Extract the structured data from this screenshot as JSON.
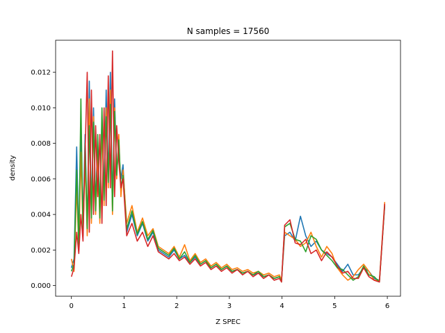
{
  "chart_data": {
    "type": "line",
    "title": "N samples = 17560",
    "xlabel": "Z SPEC",
    "ylabel": "density",
    "xlim": [
      -0.3,
      6.25
    ],
    "ylim": [
      -0.0006,
      0.0138
    ],
    "xticks": [
      0,
      1,
      2,
      3,
      4,
      5,
      6
    ],
    "yticks": [
      0.0,
      0.002,
      0.004,
      0.006,
      0.008,
      0.01,
      0.012
    ],
    "ytick_labels": [
      "0.000",
      "0.002",
      "0.004",
      "0.006",
      "0.008",
      "0.010",
      "0.012"
    ],
    "grid": false,
    "legend": "none",
    "series": [
      {
        "color": "#1f77b4",
        "x": [
          0.0,
          0.05,
          0.1,
          0.14,
          0.18,
          0.22,
          0.26,
          0.3,
          0.34,
          0.38,
          0.42,
          0.46,
          0.5,
          0.54,
          0.58,
          0.62,
          0.66,
          0.7,
          0.74,
          0.78,
          0.82,
          0.86,
          0.9,
          0.94,
          0.98,
          1.05,
          1.15,
          1.25,
          1.35,
          1.45,
          1.55,
          1.65,
          1.75,
          1.85,
          1.95,
          2.05,
          2.15,
          2.25,
          2.35,
          2.45,
          2.55,
          2.65,
          2.75,
          2.85,
          2.95,
          3.05,
          3.15,
          3.25,
          3.35,
          3.45,
          3.55,
          3.65,
          3.75,
          3.85,
          3.95,
          3.99,
          4.05,
          4.15,
          4.25,
          4.35,
          4.45,
          4.55,
          4.65,
          4.75,
          4.85,
          4.95,
          5.05,
          5.15,
          5.25,
          5.35,
          5.45,
          5.55,
          5.65,
          5.75,
          5.85,
          5.95
        ],
        "y": [
          0.001,
          0.0015,
          0.0078,
          0.0025,
          0.009,
          0.0035,
          0.0085,
          0.003,
          0.0115,
          0.004,
          0.01,
          0.0045,
          0.008,
          0.004,
          0.0095,
          0.005,
          0.011,
          0.006,
          0.012,
          0.0045,
          0.0105,
          0.0065,
          0.0075,
          0.006,
          0.0068,
          0.003,
          0.004,
          0.0028,
          0.0035,
          0.0025,
          0.003,
          0.002,
          0.0018,
          0.0016,
          0.002,
          0.0015,
          0.0017,
          0.0013,
          0.0016,
          0.0012,
          0.0014,
          0.001,
          0.0012,
          0.0009,
          0.0011,
          0.0008,
          0.0009,
          0.0007,
          0.0008,
          0.0006,
          0.0007,
          0.0005,
          0.0006,
          0.0004,
          0.0005,
          0.0003,
          0.0028,
          0.003,
          0.0025,
          0.0039,
          0.0028,
          0.0022,
          0.0025,
          0.002,
          0.0018,
          0.0016,
          0.0012,
          0.0008,
          0.0012,
          0.0006,
          0.0006,
          0.001,
          0.0008,
          0.0004,
          0.0003,
          0.0045
        ]
      },
      {
        "color": "#ff7f0e",
        "x": [
          0.0,
          0.05,
          0.1,
          0.14,
          0.18,
          0.22,
          0.26,
          0.3,
          0.34,
          0.38,
          0.42,
          0.46,
          0.5,
          0.54,
          0.58,
          0.62,
          0.66,
          0.7,
          0.74,
          0.78,
          0.82,
          0.86,
          0.9,
          0.94,
          0.98,
          1.05,
          1.15,
          1.25,
          1.35,
          1.45,
          1.55,
          1.65,
          1.75,
          1.85,
          1.95,
          2.05,
          2.15,
          2.25,
          2.35,
          2.45,
          2.55,
          2.65,
          2.75,
          2.85,
          2.95,
          3.05,
          3.15,
          3.25,
          3.35,
          3.45,
          3.55,
          3.65,
          3.75,
          3.85,
          3.95,
          3.99,
          4.05,
          4.15,
          4.25,
          4.35,
          4.45,
          4.55,
          4.65,
          4.75,
          4.85,
          4.95,
          5.05,
          5.15,
          5.25,
          5.35,
          5.45,
          5.55,
          5.65,
          5.75,
          5.85,
          5.95
        ],
        "y": [
          0.0015,
          0.0008,
          0.0056,
          0.002,
          0.0075,
          0.003,
          0.007,
          0.0028,
          0.0105,
          0.0035,
          0.0095,
          0.004,
          0.0075,
          0.0035,
          0.009,
          0.0045,
          0.01,
          0.0055,
          0.011,
          0.004,
          0.01,
          0.006,
          0.0085,
          0.005,
          0.0065,
          0.0035,
          0.0045,
          0.003,
          0.0038,
          0.0028,
          0.0032,
          0.0022,
          0.002,
          0.0018,
          0.0022,
          0.0016,
          0.0023,
          0.0014,
          0.0018,
          0.0013,
          0.0015,
          0.0011,
          0.0013,
          0.001,
          0.0012,
          0.0009,
          0.001,
          0.0008,
          0.0009,
          0.0007,
          0.0008,
          0.0006,
          0.0007,
          0.0005,
          0.0006,
          0.0003,
          0.003,
          0.0028,
          0.0026,
          0.0022,
          0.0024,
          0.003,
          0.0022,
          0.0016,
          0.0022,
          0.0018,
          0.001,
          0.0006,
          0.0003,
          0.0005,
          0.0009,
          0.0012,
          0.0008,
          0.0003,
          0.0003,
          0.0047
        ]
      },
      {
        "color": "#2ca02c",
        "x": [
          0.0,
          0.05,
          0.1,
          0.14,
          0.18,
          0.22,
          0.26,
          0.3,
          0.34,
          0.38,
          0.42,
          0.46,
          0.5,
          0.54,
          0.58,
          0.62,
          0.66,
          0.7,
          0.74,
          0.78,
          0.82,
          0.86,
          0.9,
          0.94,
          0.98,
          1.05,
          1.15,
          1.25,
          1.35,
          1.45,
          1.55,
          1.65,
          1.75,
          1.85,
          1.95,
          2.05,
          2.15,
          2.25,
          2.35,
          2.45,
          2.55,
          2.65,
          2.75,
          2.85,
          2.95,
          3.05,
          3.15,
          3.25,
          3.35,
          3.45,
          3.55,
          3.65,
          3.75,
          3.85,
          3.95,
          3.99,
          4.05,
          4.15,
          4.25,
          4.35,
          4.45,
          4.55,
          4.65,
          4.75,
          4.85,
          4.95,
          5.05,
          5.15,
          5.25,
          5.35,
          5.45,
          5.55,
          5.65,
          5.75,
          5.85,
          5.95
        ],
        "y": [
          0.0008,
          0.0012,
          0.0065,
          0.0022,
          0.0105,
          0.0028,
          0.008,
          0.0032,
          0.009,
          0.0038,
          0.0092,
          0.0042,
          0.0085,
          0.0038,
          0.01,
          0.0048,
          0.0095,
          0.0058,
          0.0102,
          0.0042,
          0.0098,
          0.0062,
          0.0082,
          0.0055,
          0.0062,
          0.0032,
          0.0042,
          0.0029,
          0.0036,
          0.0026,
          0.0031,
          0.0021,
          0.0019,
          0.0017,
          0.0021,
          0.0015,
          0.0019,
          0.0013,
          0.0017,
          0.0012,
          0.0014,
          0.001,
          0.0012,
          0.0009,
          0.0011,
          0.0008,
          0.0009,
          0.0007,
          0.0008,
          0.0006,
          0.0008,
          0.0005,
          0.0006,
          0.0004,
          0.0005,
          0.0002,
          0.0033,
          0.0035,
          0.0026,
          0.0025,
          0.0019,
          0.0028,
          0.0026,
          0.002,
          0.0017,
          0.0014,
          0.001,
          0.0009,
          0.0006,
          0.0003,
          0.0005,
          0.0011,
          0.0006,
          0.0005,
          0.0002,
          0.0045
        ]
      },
      {
        "color": "#d62728",
        "x": [
          0.0,
          0.05,
          0.1,
          0.14,
          0.18,
          0.22,
          0.26,
          0.3,
          0.34,
          0.38,
          0.42,
          0.46,
          0.5,
          0.54,
          0.58,
          0.62,
          0.66,
          0.7,
          0.74,
          0.78,
          0.82,
          0.86,
          0.9,
          0.94,
          0.98,
          1.05,
          1.15,
          1.25,
          1.35,
          1.45,
          1.55,
          1.65,
          1.75,
          1.85,
          1.95,
          2.05,
          2.15,
          2.25,
          2.35,
          2.45,
          2.55,
          2.65,
          2.75,
          2.85,
          2.95,
          3.05,
          3.15,
          3.25,
          3.35,
          3.45,
          3.55,
          3.65,
          3.75,
          3.85,
          3.95,
          3.99,
          4.05,
          4.15,
          4.25,
          4.35,
          4.45,
          4.55,
          4.65,
          4.75,
          4.85,
          4.95,
          5.05,
          5.15,
          5.25,
          5.35,
          5.45,
          5.55,
          5.65,
          5.75,
          5.85,
          5.95
        ],
        "y": [
          0.0005,
          0.001,
          0.003,
          0.0018,
          0.004,
          0.0025,
          0.0075,
          0.012,
          0.003,
          0.011,
          0.004,
          0.009,
          0.005,
          0.0085,
          0.0035,
          0.01,
          0.0045,
          0.0118,
          0.0055,
          0.0132,
          0.005,
          0.009,
          0.007,
          0.0055,
          0.006,
          0.0028,
          0.0035,
          0.0025,
          0.003,
          0.0022,
          0.0028,
          0.0019,
          0.0017,
          0.0015,
          0.0018,
          0.0014,
          0.0016,
          0.0012,
          0.0015,
          0.0011,
          0.0013,
          0.0009,
          0.0011,
          0.0008,
          0.001,
          0.0007,
          0.0009,
          0.0006,
          0.0008,
          0.0005,
          0.0007,
          0.0004,
          0.0006,
          0.0003,
          0.0004,
          0.0002,
          0.0034,
          0.0037,
          0.0024,
          0.0023,
          0.0026,
          0.0018,
          0.002,
          0.0014,
          0.0019,
          0.0016,
          0.0011,
          0.0007,
          0.0008,
          0.0004,
          0.0004,
          0.001,
          0.0005,
          0.0003,
          0.0002,
          0.0046
        ]
      }
    ]
  }
}
